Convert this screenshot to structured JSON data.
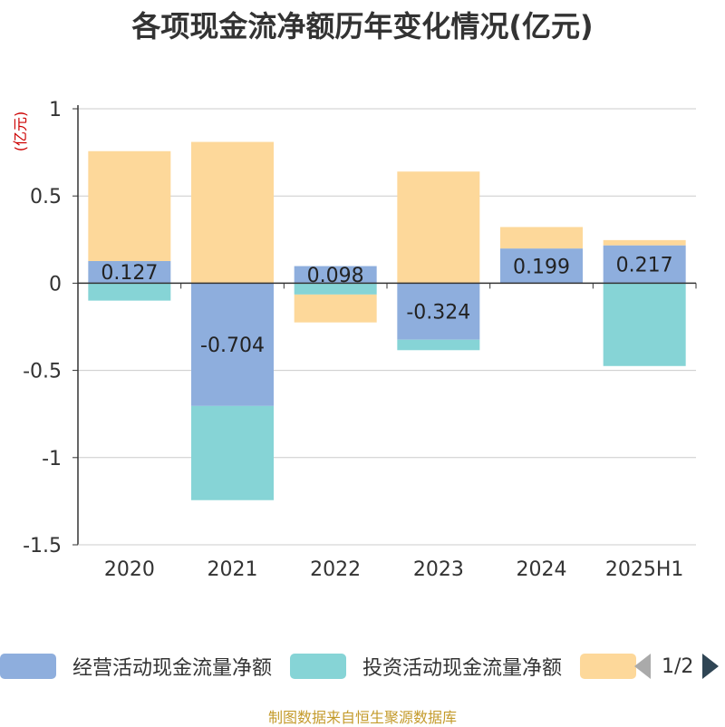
{
  "title": "各项现金流净额历年变化情况(亿元)",
  "source": "制图数据来自恒生聚源数据库",
  "pager": {
    "text": "1/2"
  },
  "chart_data": {
    "type": "bar",
    "stacked": true,
    "categories": [
      "2020",
      "2021",
      "2022",
      "2023",
      "2024",
      "2025H1"
    ],
    "ylabel": "(亿元)",
    "ylim": [
      -1.5,
      1
    ],
    "yticks": [
      1,
      0.5,
      0,
      -0.5,
      -1,
      -1.5
    ],
    "ytick_labels": [
      "1",
      "0.5",
      "0",
      "-0.5",
      "-1",
      "-1.5"
    ],
    "grid": true,
    "legend_position": "bottom",
    "series": [
      {
        "name": "经营活动现金流量净额",
        "color": "#8eaedd",
        "values": [
          0.127,
          -0.704,
          0.098,
          -0.324,
          0.199,
          0.217
        ],
        "labels": [
          "0.127",
          "-0.704",
          "0.098",
          "-0.324",
          "0.199",
          "0.217"
        ]
      },
      {
        "name": "投资活动现金流量净额",
        "color": "#86d4d6",
        "values": [
          -0.1,
          -0.54,
          -0.065,
          -0.06,
          0,
          -0.475
        ]
      },
      {
        "name": "",
        "color": "#fdd89a",
        "values": [
          0.63,
          0.81,
          -0.16,
          0.64,
          0.123,
          0.03
        ]
      }
    ]
  }
}
